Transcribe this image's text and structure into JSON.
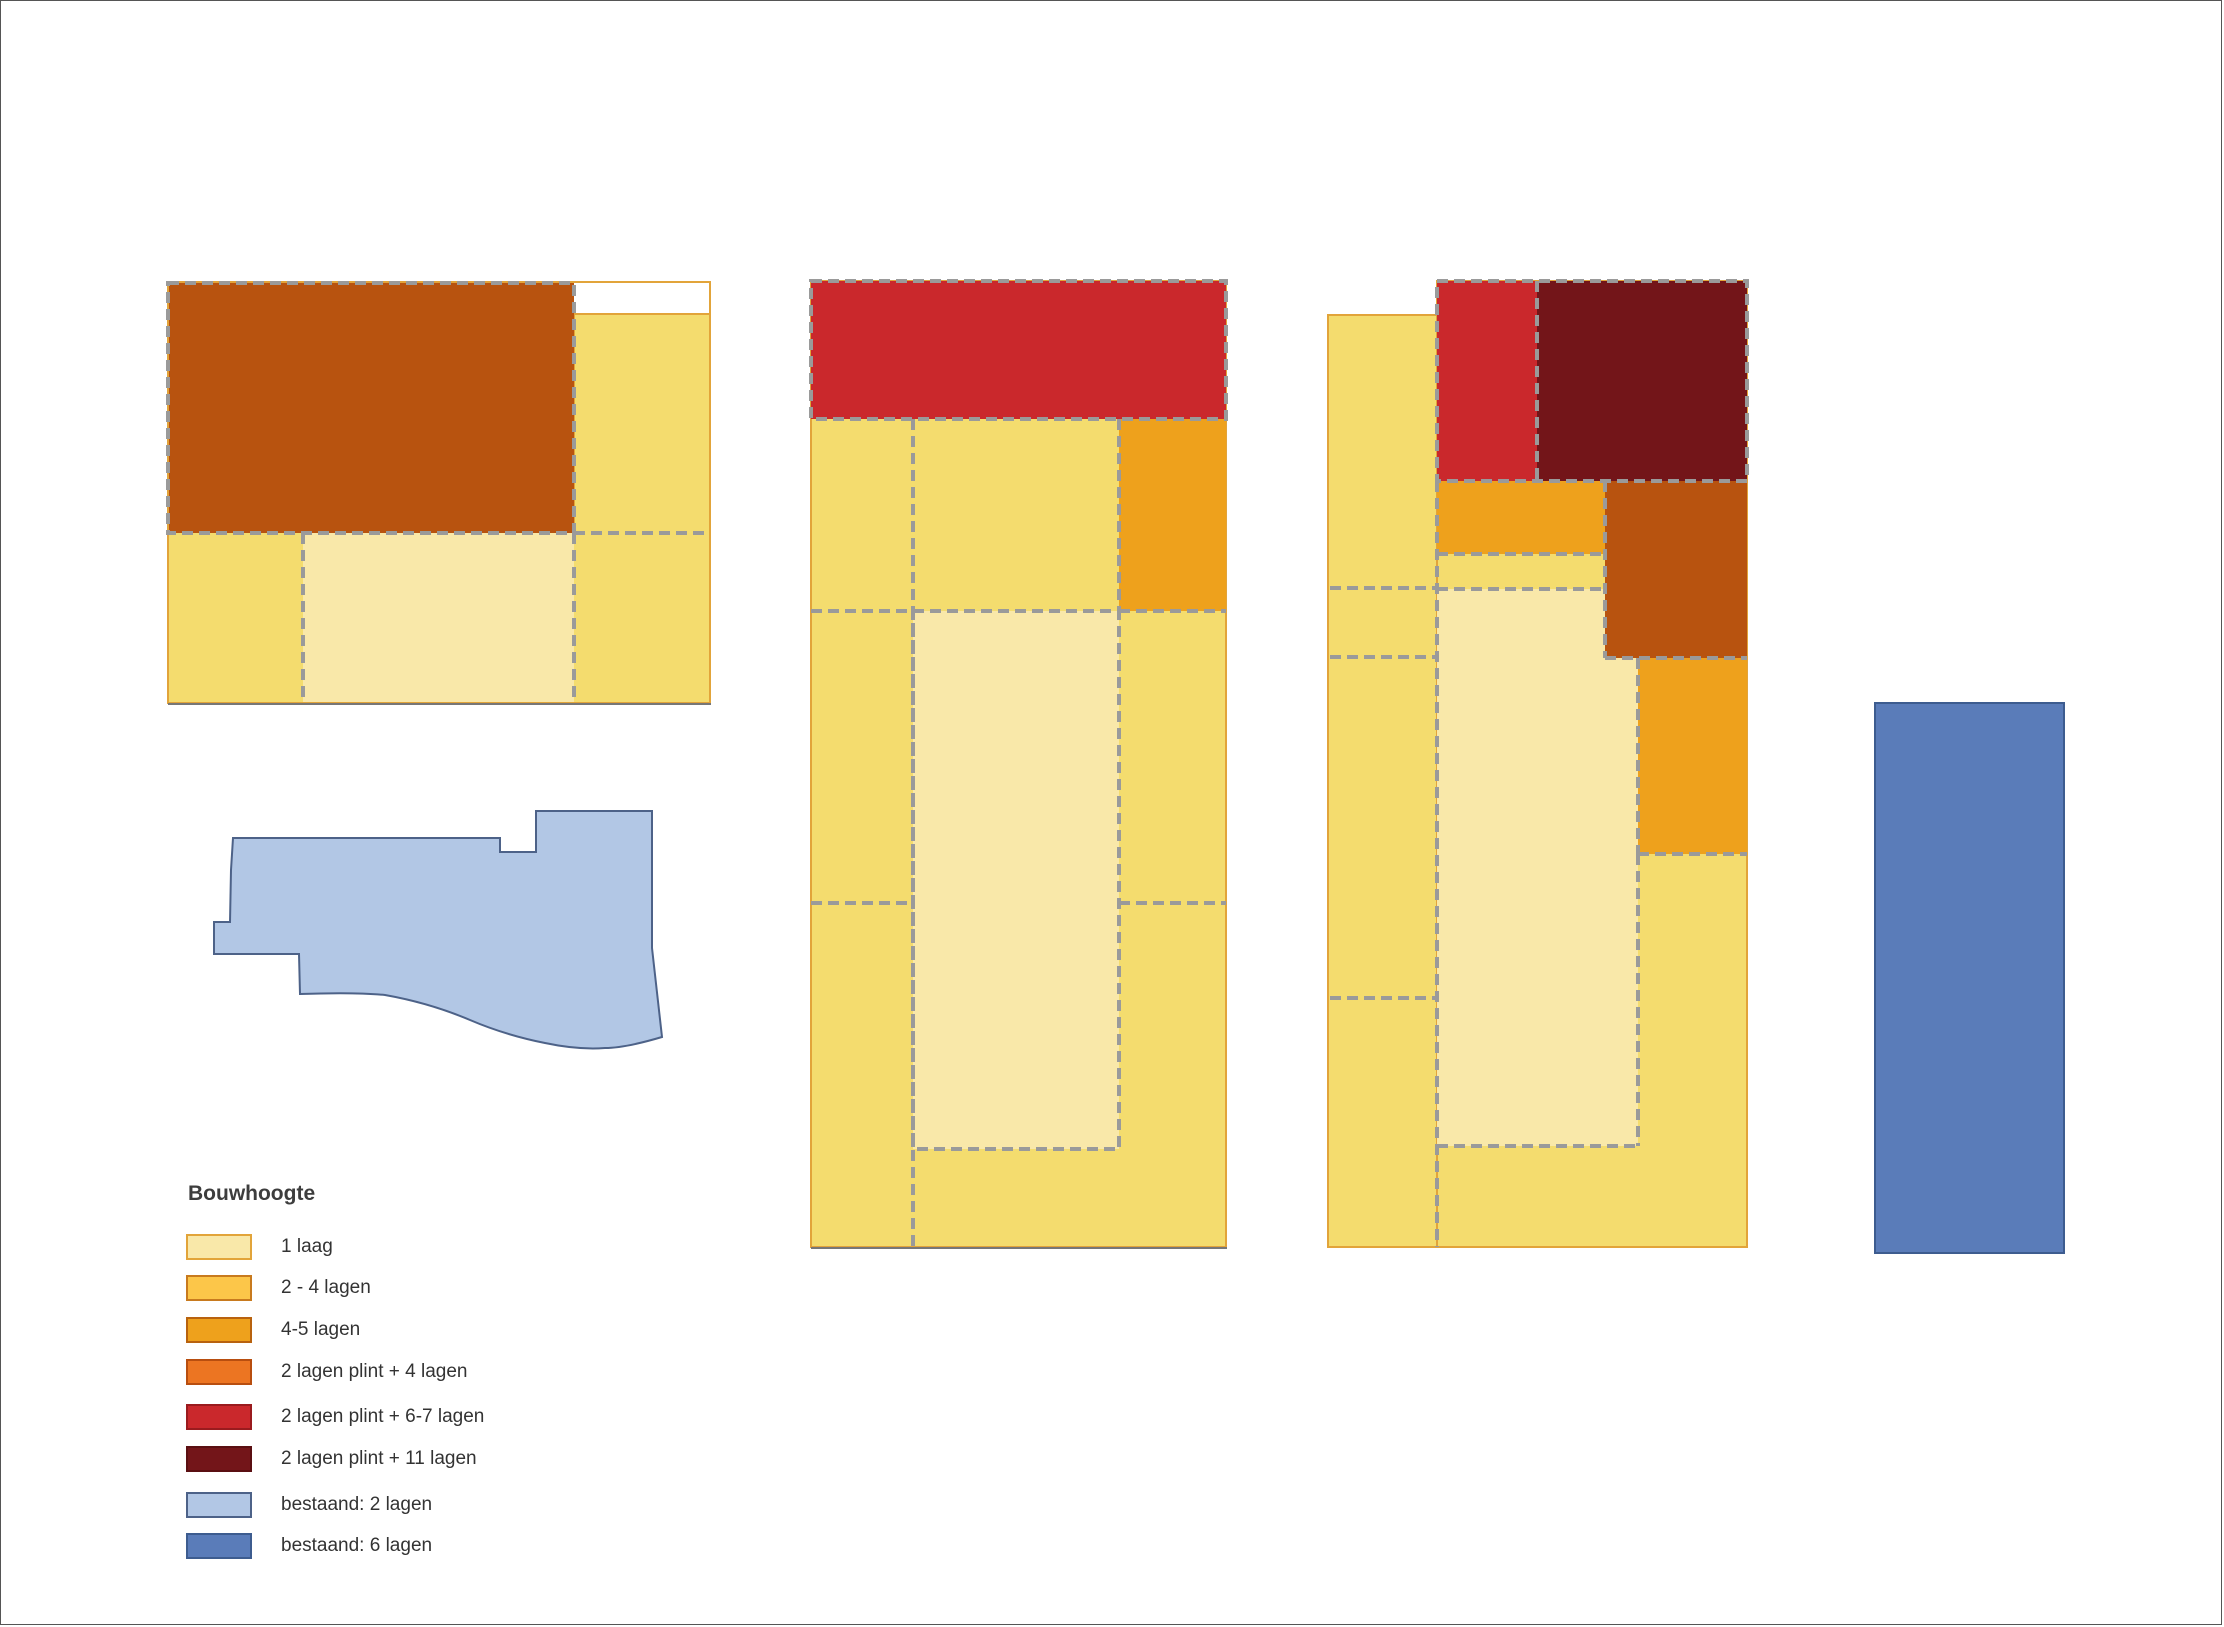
{
  "colors": {
    "laag_1": "#f9e8a9",
    "lagen_2_4": "#f4dc6e",
    "lagen_4_5": "#eea11c",
    "plint_4": "#b8530f",
    "plint_6_7": "#ca282c",
    "plint_11": "#731519",
    "bestaand_2": "#b2c7e5",
    "bestaand_6": "#5a7cb9",
    "dash": "#9a9a9a",
    "outline": "#e2a43a"
  },
  "legend": {
    "title": "Bouwhoogte",
    "items": [
      {
        "label": "1 laag",
        "fill": "#f9e8a9",
        "border": "#e2a43a"
      },
      {
        "label": "2 - 4 lagen",
        "fill": "#fcc649",
        "border": "#c87a1e"
      },
      {
        "label": "4-5 lagen",
        "fill": "#eea11c",
        "border": "#b8620e"
      },
      {
        "label": "2 lagen plint + 4 lagen",
        "fill": "#ec7522",
        "border": "#b84e0f"
      },
      {
        "label": "2 lagen plint + 6-7 lagen",
        "fill": "#ca282c",
        "border": "#9a1b1e"
      },
      {
        "label": "2 lagen plint + 11 lagen",
        "fill": "#731519",
        "border": "#5a0f12"
      },
      {
        "label": "bestaand: 2 lagen",
        "fill": "#b2c7e5",
        "border": "#4d6288"
      },
      {
        "label": "bestaand: 6 lagen",
        "fill": "#5a7cb9",
        "border": "#3d5c8f"
      }
    ]
  }
}
